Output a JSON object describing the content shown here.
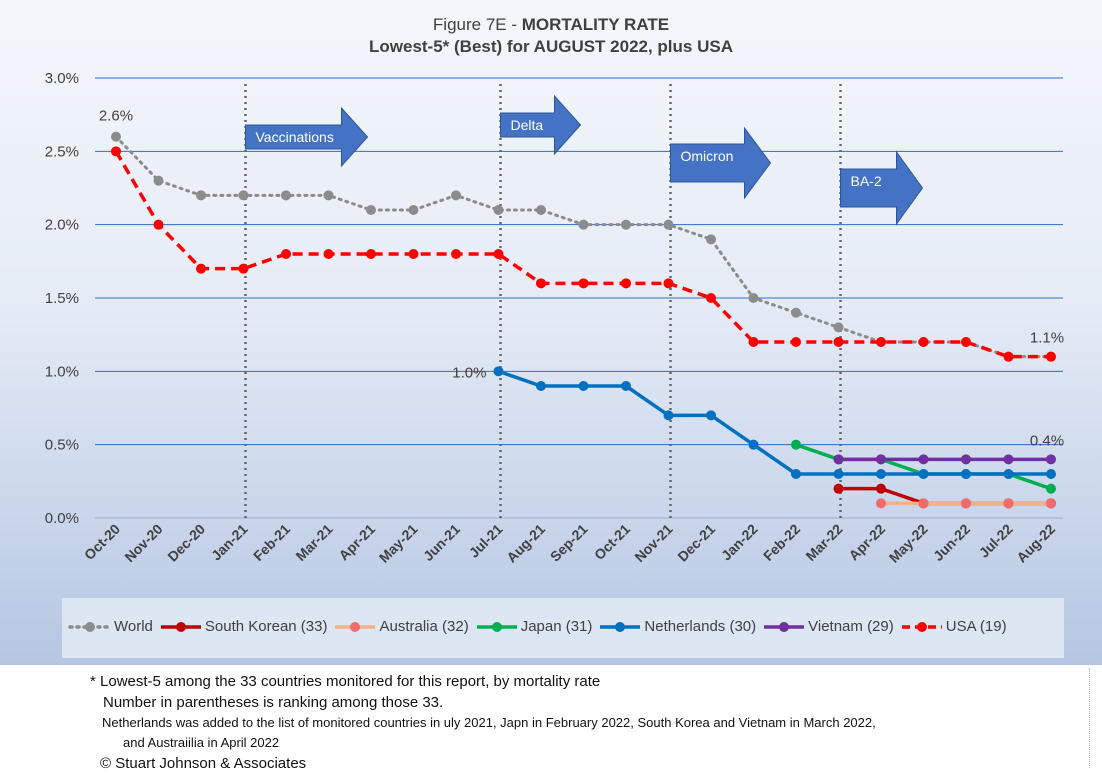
{
  "chart_data": {
    "type": "line",
    "title_prefix": "Figure 7E  - ",
    "title_bold": "MORTALITY RATE",
    "subtitle": "Lowest-5* (Best) for AUGUST 2022, plus USA",
    "categories": [
      "Oct-20",
      "Nov-20",
      "Dec-20",
      "Jan-21",
      "Feb-21",
      "Mar-21",
      "Apr-21",
      "May-21",
      "Jun-21",
      "Jul-21",
      "Aug-21",
      "Sep-21",
      "Oct-21",
      "Nov-21",
      "Dec-21",
      "Jan-22",
      "Feb-22",
      "Mar-22",
      "Apr-22",
      "May-22",
      "Jun-22",
      "Jul-22",
      "Aug-22"
    ],
    "yticks": [
      "0.0%",
      "0.5%",
      "1.0%",
      "1.5%",
      "2.0%",
      "2.5%",
      "3.0%"
    ],
    "ylim": [
      0,
      3.0
    ],
    "grid": true,
    "legend_position": "bottom",
    "series": [
      {
        "name": "World",
        "color": "#8c8c8c",
        "style": "dotted",
        "values": [
          2.6,
          2.3,
          2.2,
          2.2,
          2.2,
          2.2,
          2.1,
          2.1,
          2.2,
          2.1,
          2.1,
          2.0,
          2.0,
          2.0,
          1.9,
          1.5,
          1.4,
          1.3,
          1.2,
          1.2,
          1.2,
          1.1,
          1.1
        ]
      },
      {
        "name": "South Korean (33)",
        "color": "#c00000",
        "style": "solid",
        "values": [
          null,
          null,
          null,
          null,
          null,
          null,
          null,
          null,
          null,
          null,
          null,
          null,
          null,
          null,
          null,
          null,
          null,
          0.2,
          0.2,
          0.1,
          0.1,
          0.1,
          0.1
        ]
      },
      {
        "name": "Australia (32)",
        "color": "#f4b183",
        "marker": "#f26b6b",
        "style": "solid",
        "values": [
          null,
          null,
          null,
          null,
          null,
          null,
          null,
          null,
          null,
          null,
          null,
          null,
          null,
          null,
          null,
          null,
          null,
          null,
          0.1,
          0.1,
          0.1,
          0.1,
          0.1
        ]
      },
      {
        "name": "Japan (31)",
        "color": "#00b050",
        "style": "solid",
        "values": [
          null,
          null,
          null,
          null,
          null,
          null,
          null,
          null,
          null,
          null,
          null,
          null,
          null,
          null,
          null,
          null,
          0.5,
          0.4,
          0.4,
          0.3,
          0.3,
          0.3,
          0.2
        ]
      },
      {
        "name": "Netherlands (30)",
        "color": "#0070c0",
        "style": "solid",
        "values": [
          null,
          null,
          null,
          null,
          null,
          null,
          null,
          null,
          null,
          1.0,
          0.9,
          0.9,
          0.9,
          0.7,
          0.7,
          0.5,
          0.3,
          0.3,
          0.3,
          0.3,
          0.3,
          0.3,
          0.3
        ]
      },
      {
        "name": "Vietnam (29)",
        "color": "#7030a0",
        "style": "solid",
        "values": [
          null,
          null,
          null,
          null,
          null,
          null,
          null,
          null,
          null,
          null,
          null,
          null,
          null,
          null,
          null,
          null,
          null,
          0.4,
          0.4,
          0.4,
          0.4,
          0.4,
          0.4
        ]
      },
      {
        "name": "USA (19)",
        "color": "#ff0000",
        "style": "dashed",
        "values": [
          2.5,
          2.0,
          1.7,
          1.7,
          1.8,
          1.8,
          1.8,
          1.8,
          1.8,
          1.8,
          1.6,
          1.6,
          1.6,
          1.6,
          1.5,
          1.2,
          1.2,
          1.2,
          1.2,
          1.2,
          1.2,
          1.1,
          1.1
        ]
      }
    ],
    "events": [
      {
        "label": "Vaccinations",
        "category": "Jan-21"
      },
      {
        "label": "Delta",
        "category": "Jul-21"
      },
      {
        "label": "Omicron",
        "category": "Nov-21"
      },
      {
        "label": "BA-2",
        "category": "Mar-22"
      }
    ],
    "annotations": [
      {
        "text": "2.6%",
        "category": "Oct-20",
        "value": 2.6
      },
      {
        "text": "1.0%",
        "category": "Jul-21",
        "value": 1.0
      },
      {
        "text": "1.1%",
        "category": "Aug-22",
        "value": 1.1
      },
      {
        "text": "0.4%",
        "category": "Aug-22",
        "value": 0.4
      }
    ]
  },
  "notes": {
    "line1": "* Lowest-5 among the 33 countries monitored for this report, by mortality rate",
    "line2": "Number in parentheses is ranking among those 33.",
    "line3": "Netherlands was added to the list of monitored countries in uly 2021, Japn in February 2022, South Korea and Vietnam in March 2022,",
    "line4": "and Austraiilia in April 2022",
    "copyright": "© Stuart Johnson & Associates"
  }
}
